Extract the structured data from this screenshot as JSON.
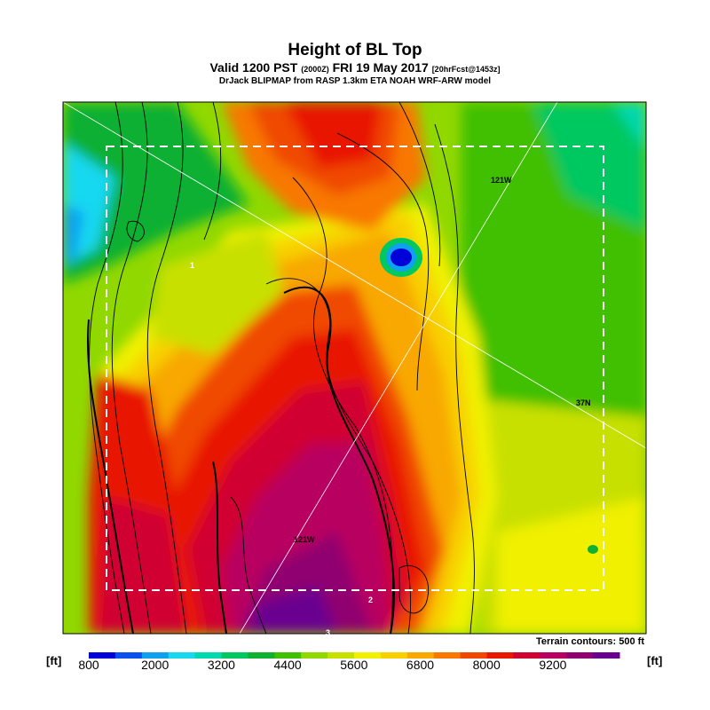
{
  "header": {
    "title": "Height of BL Top",
    "subtitle_main": "Valid 1200 PST",
    "subtitle_z": "(2000Z)",
    "subtitle_date": "FRI 19 May 2017",
    "subtitle_fcst": "[20hrFcst@1453z]",
    "credit": "DrJack BLIPMAP from RASP 1.3km ETA NOAH WRF-ARW model"
  },
  "map": {
    "labels": {
      "lon_top": "121W",
      "lon_bottom": "121W",
      "lat_right": "37N",
      "marker_1": "1",
      "marker_2": "2",
      "marker_3": "3"
    },
    "contour_note": "Terrain contours: 500 ft"
  },
  "legend": {
    "unit": "[ft]",
    "ticks": [
      "800",
      "2000",
      "3200",
      "4400",
      "5600",
      "6800",
      "8000",
      "9200"
    ],
    "colors": [
      "#0000d8",
      "#0a50f0",
      "#10a0f0",
      "#18d8f0",
      "#00d8b0",
      "#00c860",
      "#10b030",
      "#40c000",
      "#90d800",
      "#c8e000",
      "#f0f000",
      "#f8d000",
      "#f8a800",
      "#f87800",
      "#f04800",
      "#e81800",
      "#d00030",
      "#b80060",
      "#900070",
      "#6a0090"
    ]
  }
}
